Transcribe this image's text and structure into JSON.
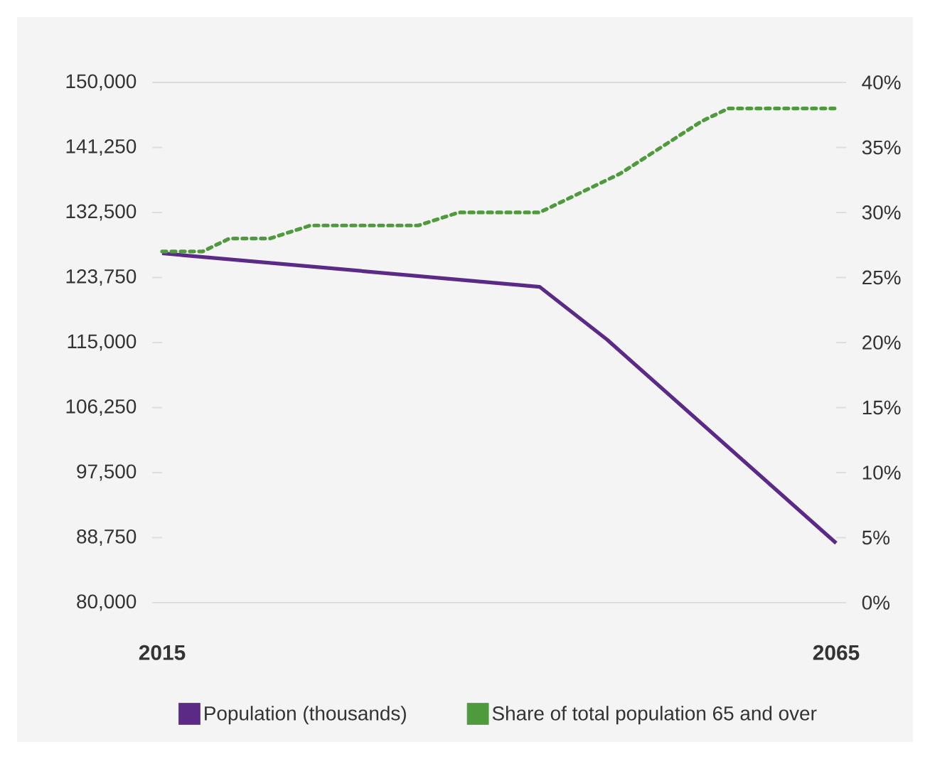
{
  "chart_data": {
    "type": "line",
    "series": [
      {
        "name": "Population (thousands)",
        "color": "#5b2a86",
        "line_style": "solid",
        "x": [
          2015,
          2043,
          2048,
          2065
        ],
        "values": [
          127000,
          122500,
          115400,
          88000
        ]
      },
      {
        "name": "Share of total population 65 and over",
        "color": "#4f9a3c",
        "line_style": "dotted",
        "axis": "y2",
        "x": [
          2015,
          2018,
          2020,
          2023,
          2026,
          2034,
          2037,
          2043,
          2045,
          2049,
          2052,
          2055,
          2057,
          2065
        ],
        "values": [
          27,
          27,
          28,
          28,
          29,
          29,
          30,
          30,
          31,
          33,
          35,
          37,
          38,
          38
        ]
      }
    ],
    "xlim": [
      2015,
      2065
    ],
    "xticks": [
      2015,
      2065
    ],
    "ylim": [
      80000,
      150000
    ],
    "yticks": [
      {
        "value": 80000,
        "label": "80,000"
      },
      {
        "value": 88750,
        "label": "88,750"
      },
      {
        "value": 97500,
        "label": "97,500"
      },
      {
        "value": 106250,
        "label": "106,250"
      },
      {
        "value": 115000,
        "label": "115,000"
      },
      {
        "value": 123750,
        "label": "123,750"
      },
      {
        "value": 132500,
        "label": "132,500"
      },
      {
        "value": 141250,
        "label": "141,250"
      },
      {
        "value": 150000,
        "label": "150,000"
      }
    ],
    "y2lim": [
      0,
      40
    ],
    "y2ticks": [
      {
        "value": 0,
        "label": "0%"
      },
      {
        "value": 5,
        "label": "5%"
      },
      {
        "value": 10,
        "label": "10%"
      },
      {
        "value": 15,
        "label": "15%"
      },
      {
        "value": 20,
        "label": "20%"
      },
      {
        "value": 25,
        "label": "25%"
      },
      {
        "value": 30,
        "label": "30%"
      },
      {
        "value": 35,
        "label": "35%"
      },
      {
        "value": 40,
        "label": "40%"
      }
    ],
    "marker": "none",
    "legend": "bottom"
  }
}
